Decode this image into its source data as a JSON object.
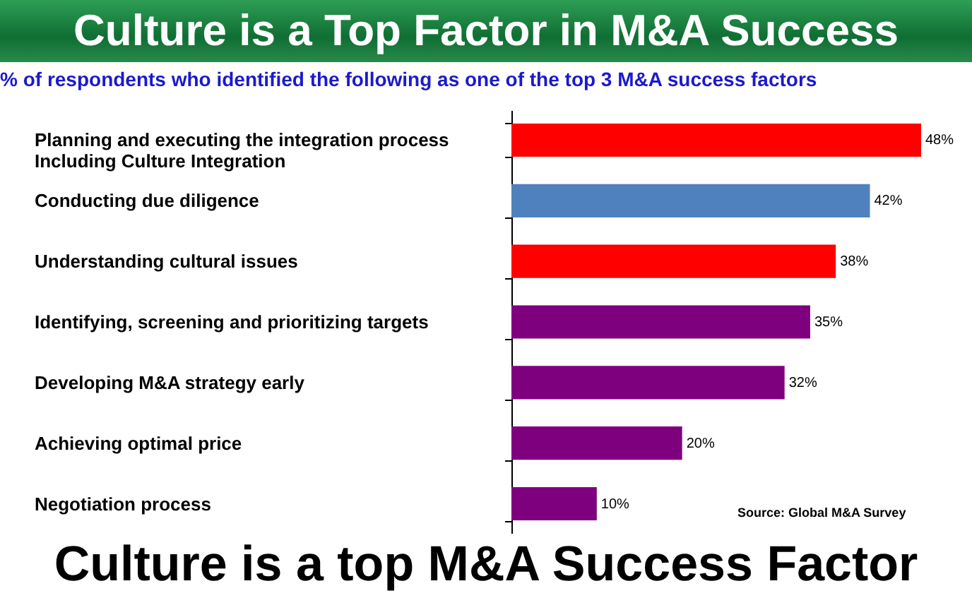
{
  "chart_data": {
    "type": "bar",
    "orientation": "horizontal",
    "title": "Culture is a Top Factor in M&A Success",
    "subtitle": "% of respondents who identified the following as one of the top 3 M&A success factors",
    "categories": [
      "Planning and executing the integration process Including Culture Integration",
      "Conducting due diligence",
      "Understanding cultural issues",
      "Identifying, screening and prioritizing targets",
      "Developing M&A strategy early",
      "Achieving optimal price",
      "Negotiation process"
    ],
    "values": [
      48,
      42,
      38,
      35,
      32,
      20,
      10
    ],
    "value_labels": [
      "48%",
      "42%",
      "38%",
      "35%",
      "32%",
      "20%",
      "10%"
    ],
    "colors": [
      "#ff0000",
      "#4f81bd",
      "#ff0000",
      "#7f007f",
      "#7f007f",
      "#7f007f",
      "#7f007f"
    ],
    "annotations": [
      "Source: Global M&A Survey",
      "Culture is a top M&A Success Factor"
    ]
  }
}
